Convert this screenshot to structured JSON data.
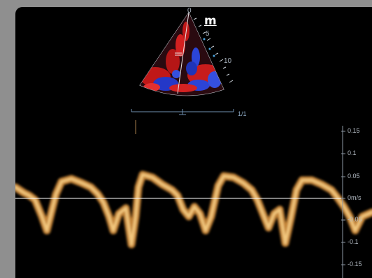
{
  "indicators": {
    "m_icon_label": "m",
    "scale_readout": "1/1"
  },
  "depth_scale": {
    "labels": [
      "0",
      "5",
      "10"
    ]
  },
  "velocity_scale": {
    "labels": [
      "0.15",
      "0.1",
      "0.05",
      "0m/s",
      "-0.05",
      "-0.1",
      "-0.15"
    ]
  },
  "colors": {
    "background": "#000000",
    "frame": "#8f8f8f",
    "doppler_trace": "#f0b060",
    "baseline": "#ffffff",
    "scale_text": "#b6bec7",
    "color_flow_red": "#d11a1a",
    "color_flow_blue": "#2a3fd6"
  }
}
